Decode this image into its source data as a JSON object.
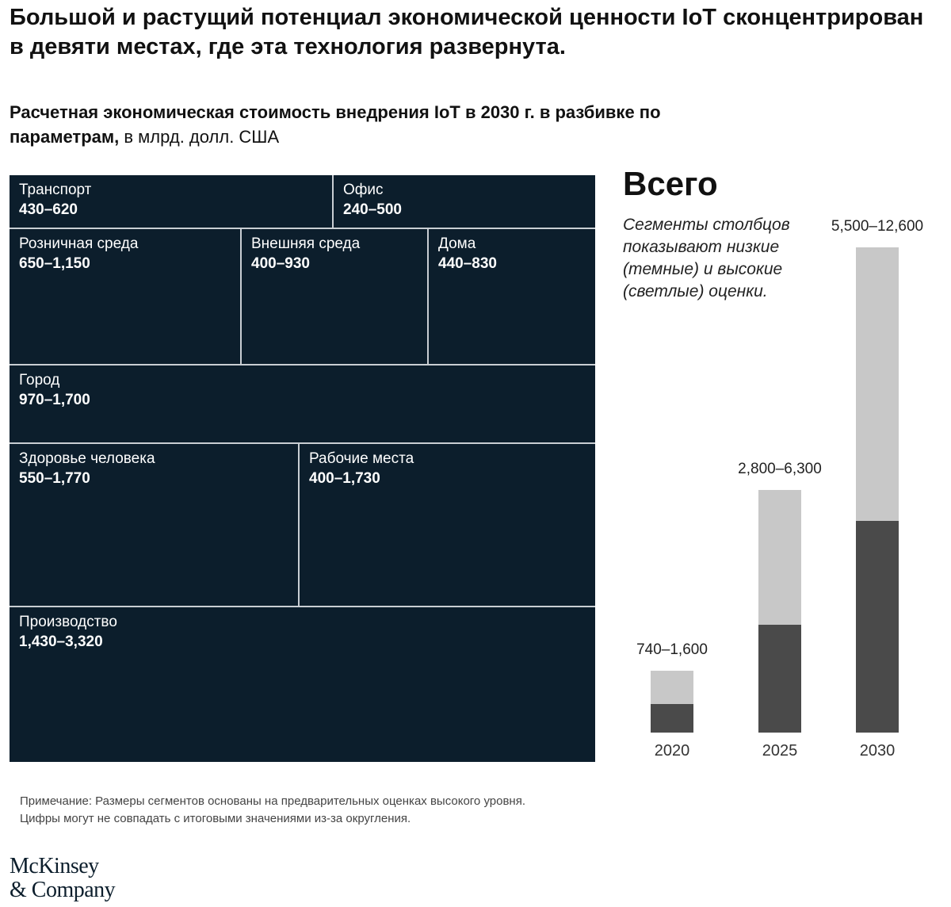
{
  "headline": "Большой и растущий потенциал экономической ценности IoT сконцентрирован в девяти местах, где эта технология развернута.",
  "subtitle": {
    "bold": "Расчетная экономическая стоимость внедрения IoT в 2030 г. в разбивке по параметрам,",
    "regular": " в млрд. долл. США"
  },
  "colors": {
    "treemap_bg": "#0c1e2c",
    "divider": "#c9ced3",
    "bar_low": "#4a4a4a",
    "bar_high": "#c8c8c8"
  },
  "chart_data": [
    {
      "type": "treemap",
      "title": "Расчетная экономическая стоимость внедрения IoT в 2030 г. в разбивке по параметрам",
      "unit": "в млрд. долл. США",
      "tiles": [
        {
          "label": "Транспорт",
          "range": "430–620",
          "low": 430,
          "high": 620
        },
        {
          "label": "Офис",
          "range": "240–500",
          "low": 240,
          "high": 500
        },
        {
          "label": "Розничная среда",
          "range": "650–1,150",
          "low": 650,
          "high": 1150
        },
        {
          "label": "Внешняя среда",
          "range": "400–930",
          "low": 400,
          "high": 930
        },
        {
          "label": "Дома",
          "range": "440–830",
          "low": 440,
          "high": 830
        },
        {
          "label": "Город",
          "range": "970–1,700",
          "low": 970,
          "high": 1700
        },
        {
          "label": "Здоровье человека",
          "range": "550–1,770",
          "low": 550,
          "high": 1770
        },
        {
          "label": "Рабочие места",
          "range": "400–1,730",
          "low": 400,
          "high": 1730
        },
        {
          "label": "Производство",
          "range": "1,430–3,320",
          "low": 1430,
          "high": 3320
        }
      ]
    },
    {
      "type": "bar",
      "title": "Всего",
      "legend_note": "Сегменты столбцов показывают низкие (темные) и высокие (светлые) оценки.",
      "categories": [
        "2020",
        "2025",
        "2030"
      ],
      "range_labels": [
        "740–1,600",
        "2,800–6,300",
        "5,500–12,600"
      ],
      "series": [
        {
          "name": "низкие (темные)",
          "values": [
            740,
            2800,
            5500
          ]
        },
        {
          "name": "высокие (светлые)",
          "values": [
            1600,
            6300,
            12600
          ]
        }
      ],
      "ylim": [
        0,
        12600
      ]
    }
  ],
  "footnote": {
    "line1": "Примечание: Размеры сегментов основаны на предварительных оценках высокого уровня.",
    "line2": "Цифры могут не совпадать с итоговыми значениями из-за округления."
  },
  "logo": {
    "line1": "McKinsey",
    "line2": "& Company"
  }
}
